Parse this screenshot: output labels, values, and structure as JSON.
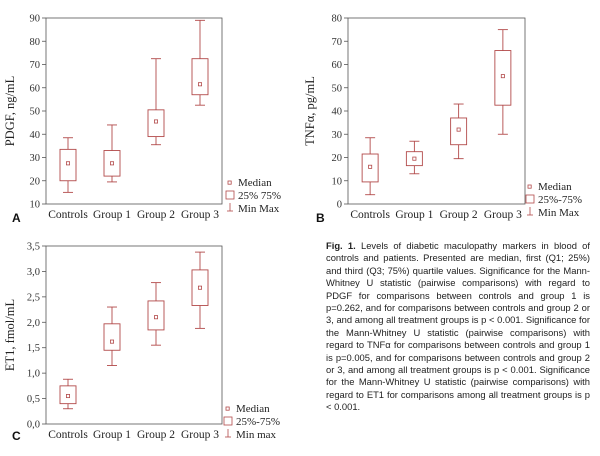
{
  "caption": {
    "label": "Fig. 1.",
    "text": "Levels of diabetic maculopathy markers in blood of controls and patients. Presented are median, first (Q1; 25%) and third (Q3; 75%) quartile values. Significance for the Mann-Whitney U statistic (pairwise comparisons) with regard to PDGF for comparisons between controls and group 1 is p=0.262, and for comparisons between controls and group 2 or 3, and among all treatment groups is p < 0.001. Significance for the Mann-Whitney U statistic (pairwise comparisons) with regard to TNFα for comparisons between controls and group 1 is p=0.005, and for comparisons between controls and group 2 or 3, and among all treatment groups is p < 0.001. Significance for the Mann-Whitney U statistic (pairwise comparisons) with regard to ET1 for comparisons among all treatment groups is p < 0.001."
  },
  "colors": {
    "box": "#b24a4a",
    "axis": "#555555",
    "grid": "#d8d8d8"
  },
  "chart_data": [
    {
      "panel": "A",
      "type": "box",
      "ylabel": "PDGF, ng/mL",
      "ylim": [
        10,
        90
      ],
      "yticks": [
        "10",
        "20",
        "30",
        "40",
        "50",
        "60",
        "70",
        "80",
        "90"
      ],
      "categories": [
        "Controls",
        "Group 1",
        "Group 2",
        "Group 3"
      ],
      "boxes": [
        {
          "min": 15,
          "q1": 20,
          "median": 27.5,
          "q3": 33.5,
          "max": 38.5
        },
        {
          "min": 19.5,
          "q1": 22,
          "median": 27.5,
          "q3": 33,
          "max": 44
        },
        {
          "min": 35.5,
          "q1": 39,
          "median": 45.5,
          "q3": 50.5,
          "max": 72.5
        },
        {
          "min": 52.5,
          "q1": 57,
          "median": 61.5,
          "q3": 72.5,
          "max": 89
        }
      ],
      "legend": [
        "Median",
        "25% 75%",
        "Min Max"
      ]
    },
    {
      "panel": "B",
      "type": "box",
      "ylabel": "TNFα, pg/mL",
      "ylim": [
        0,
        80
      ],
      "yticks": [
        "0",
        "10",
        "20",
        "30",
        "40",
        "50",
        "60",
        "70",
        "80"
      ],
      "categories": [
        "Controls",
        "Group 1",
        "Group 2",
        "Group 3"
      ],
      "boxes": [
        {
          "min": 4,
          "q1": 9.5,
          "median": 16,
          "q3": 21.5,
          "max": 28.5
        },
        {
          "min": 13,
          "q1": 16.5,
          "median": 19.5,
          "q3": 22.5,
          "max": 27
        },
        {
          "min": 19.5,
          "q1": 25.5,
          "median": 32,
          "q3": 37,
          "max": 43
        },
        {
          "min": 30,
          "q1": 42.5,
          "median": 55,
          "q3": 66,
          "max": 75
        }
      ],
      "legend": [
        "Median",
        "25%-75%",
        "Min Max"
      ]
    },
    {
      "panel": "C",
      "type": "box",
      "ylabel": "ET1, fmol/mL",
      "ylim": [
        0.0,
        3.5
      ],
      "yticks": [
        "0,0",
        "0,5",
        "1,0",
        "1,5",
        "2,0",
        "2,5",
        "3,0",
        "3,5"
      ],
      "categories": [
        "Controls",
        "Group 1",
        "Group 2",
        "Group 3"
      ],
      "boxes": [
        {
          "min": 0.3,
          "q1": 0.4,
          "median": 0.55,
          "q3": 0.75,
          "max": 0.88
        },
        {
          "min": 1.15,
          "q1": 1.45,
          "median": 1.62,
          "q3": 1.97,
          "max": 2.3
        },
        {
          "min": 1.55,
          "q1": 1.85,
          "median": 2.1,
          "q3": 2.42,
          "max": 2.78
        },
        {
          "min": 1.88,
          "q1": 2.33,
          "median": 2.68,
          "q3": 3.03,
          "max": 3.38
        }
      ],
      "legend": [
        "Median",
        "25%-75%",
        "Min max"
      ]
    }
  ]
}
